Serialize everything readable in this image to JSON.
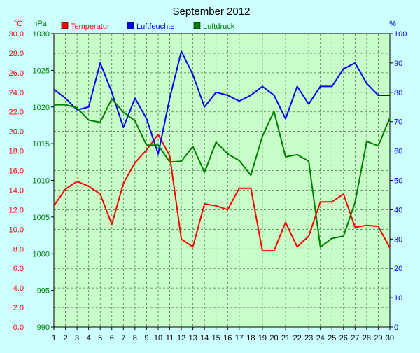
{
  "chart_data": {
    "type": "line",
    "title": "September 2012",
    "x": [
      1,
      2,
      3,
      4,
      5,
      6,
      7,
      8,
      9,
      10,
      11,
      12,
      13,
      14,
      15,
      16,
      17,
      18,
      19,
      20,
      21,
      22,
      23,
      24,
      25,
      26,
      27,
      28,
      29,
      30
    ],
    "axes": {
      "left_temperature": {
        "unit": "°C",
        "lim": [
          0,
          30
        ],
        "ticks": [
          "0.0",
          "2.0",
          "4.0",
          "6.0",
          "8.0",
          "10.0",
          "12.0",
          "14.0",
          "16.0",
          "18.0",
          "20.0",
          "22.0",
          "24.0",
          "26.0",
          "28.0",
          "30.0"
        ]
      },
      "left_pressure": {
        "unit": "hPa",
        "lim": [
          990,
          1030
        ],
        "ticks": [
          "990",
          "995",
          "1000",
          "1005",
          "1010",
          "1015",
          "1020",
          "1025",
          "1030"
        ]
      },
      "right_humidity": {
        "unit": "%",
        "lim": [
          0,
          100
        ],
        "ticks": [
          "0",
          "10",
          "20",
          "30",
          "40",
          "50",
          "60",
          "70",
          "80",
          "90",
          "100"
        ]
      }
    },
    "series": [
      {
        "name": "Temperatur",
        "color": "#ff0000",
        "axis": "left_temperature",
        "values": [
          12.4,
          14.1,
          14.9,
          14.4,
          13.6,
          10.5,
          14.7,
          16.8,
          18.1,
          19.7,
          17.5,
          9.0,
          8.2,
          12.6,
          12.4,
          12.0,
          14.2,
          14.2,
          7.8,
          7.8,
          10.7,
          8.2,
          9.3,
          12.8,
          12.8,
          13.6,
          10.2,
          10.4,
          10.3,
          8.1
        ]
      },
      {
        "name": "Luftfeuchte",
        "color": "#0000ff",
        "axis": "right_humidity",
        "values": [
          81,
          78,
          74,
          75,
          90,
          80,
          68,
          78,
          71,
          59,
          78,
          94,
          86,
          75,
          80,
          79,
          77,
          79,
          82,
          79,
          71,
          82,
          76,
          82,
          82,
          88,
          90,
          83,
          79,
          79
        ]
      },
      {
        "name": "Luftdruck",
        "color": "#008000",
        "axis": "left_pressure",
        "values": [
          1020.3,
          1020.3,
          1019.9,
          1018.2,
          1017.9,
          1021.1,
          1019.3,
          1018.1,
          1014.8,
          1014.8,
          1012.5,
          1012.6,
          1014.6,
          1011.1,
          1015.2,
          1013.6,
          1012.7,
          1010.7,
          1016.0,
          1019.4,
          1013.2,
          1013.5,
          1012.6,
          1000.9,
          1002.1,
          1002.4,
          1007.0,
          1015.3,
          1014.7,
          1018.5
        ]
      }
    ],
    "grid": true,
    "legend": "top"
  }
}
